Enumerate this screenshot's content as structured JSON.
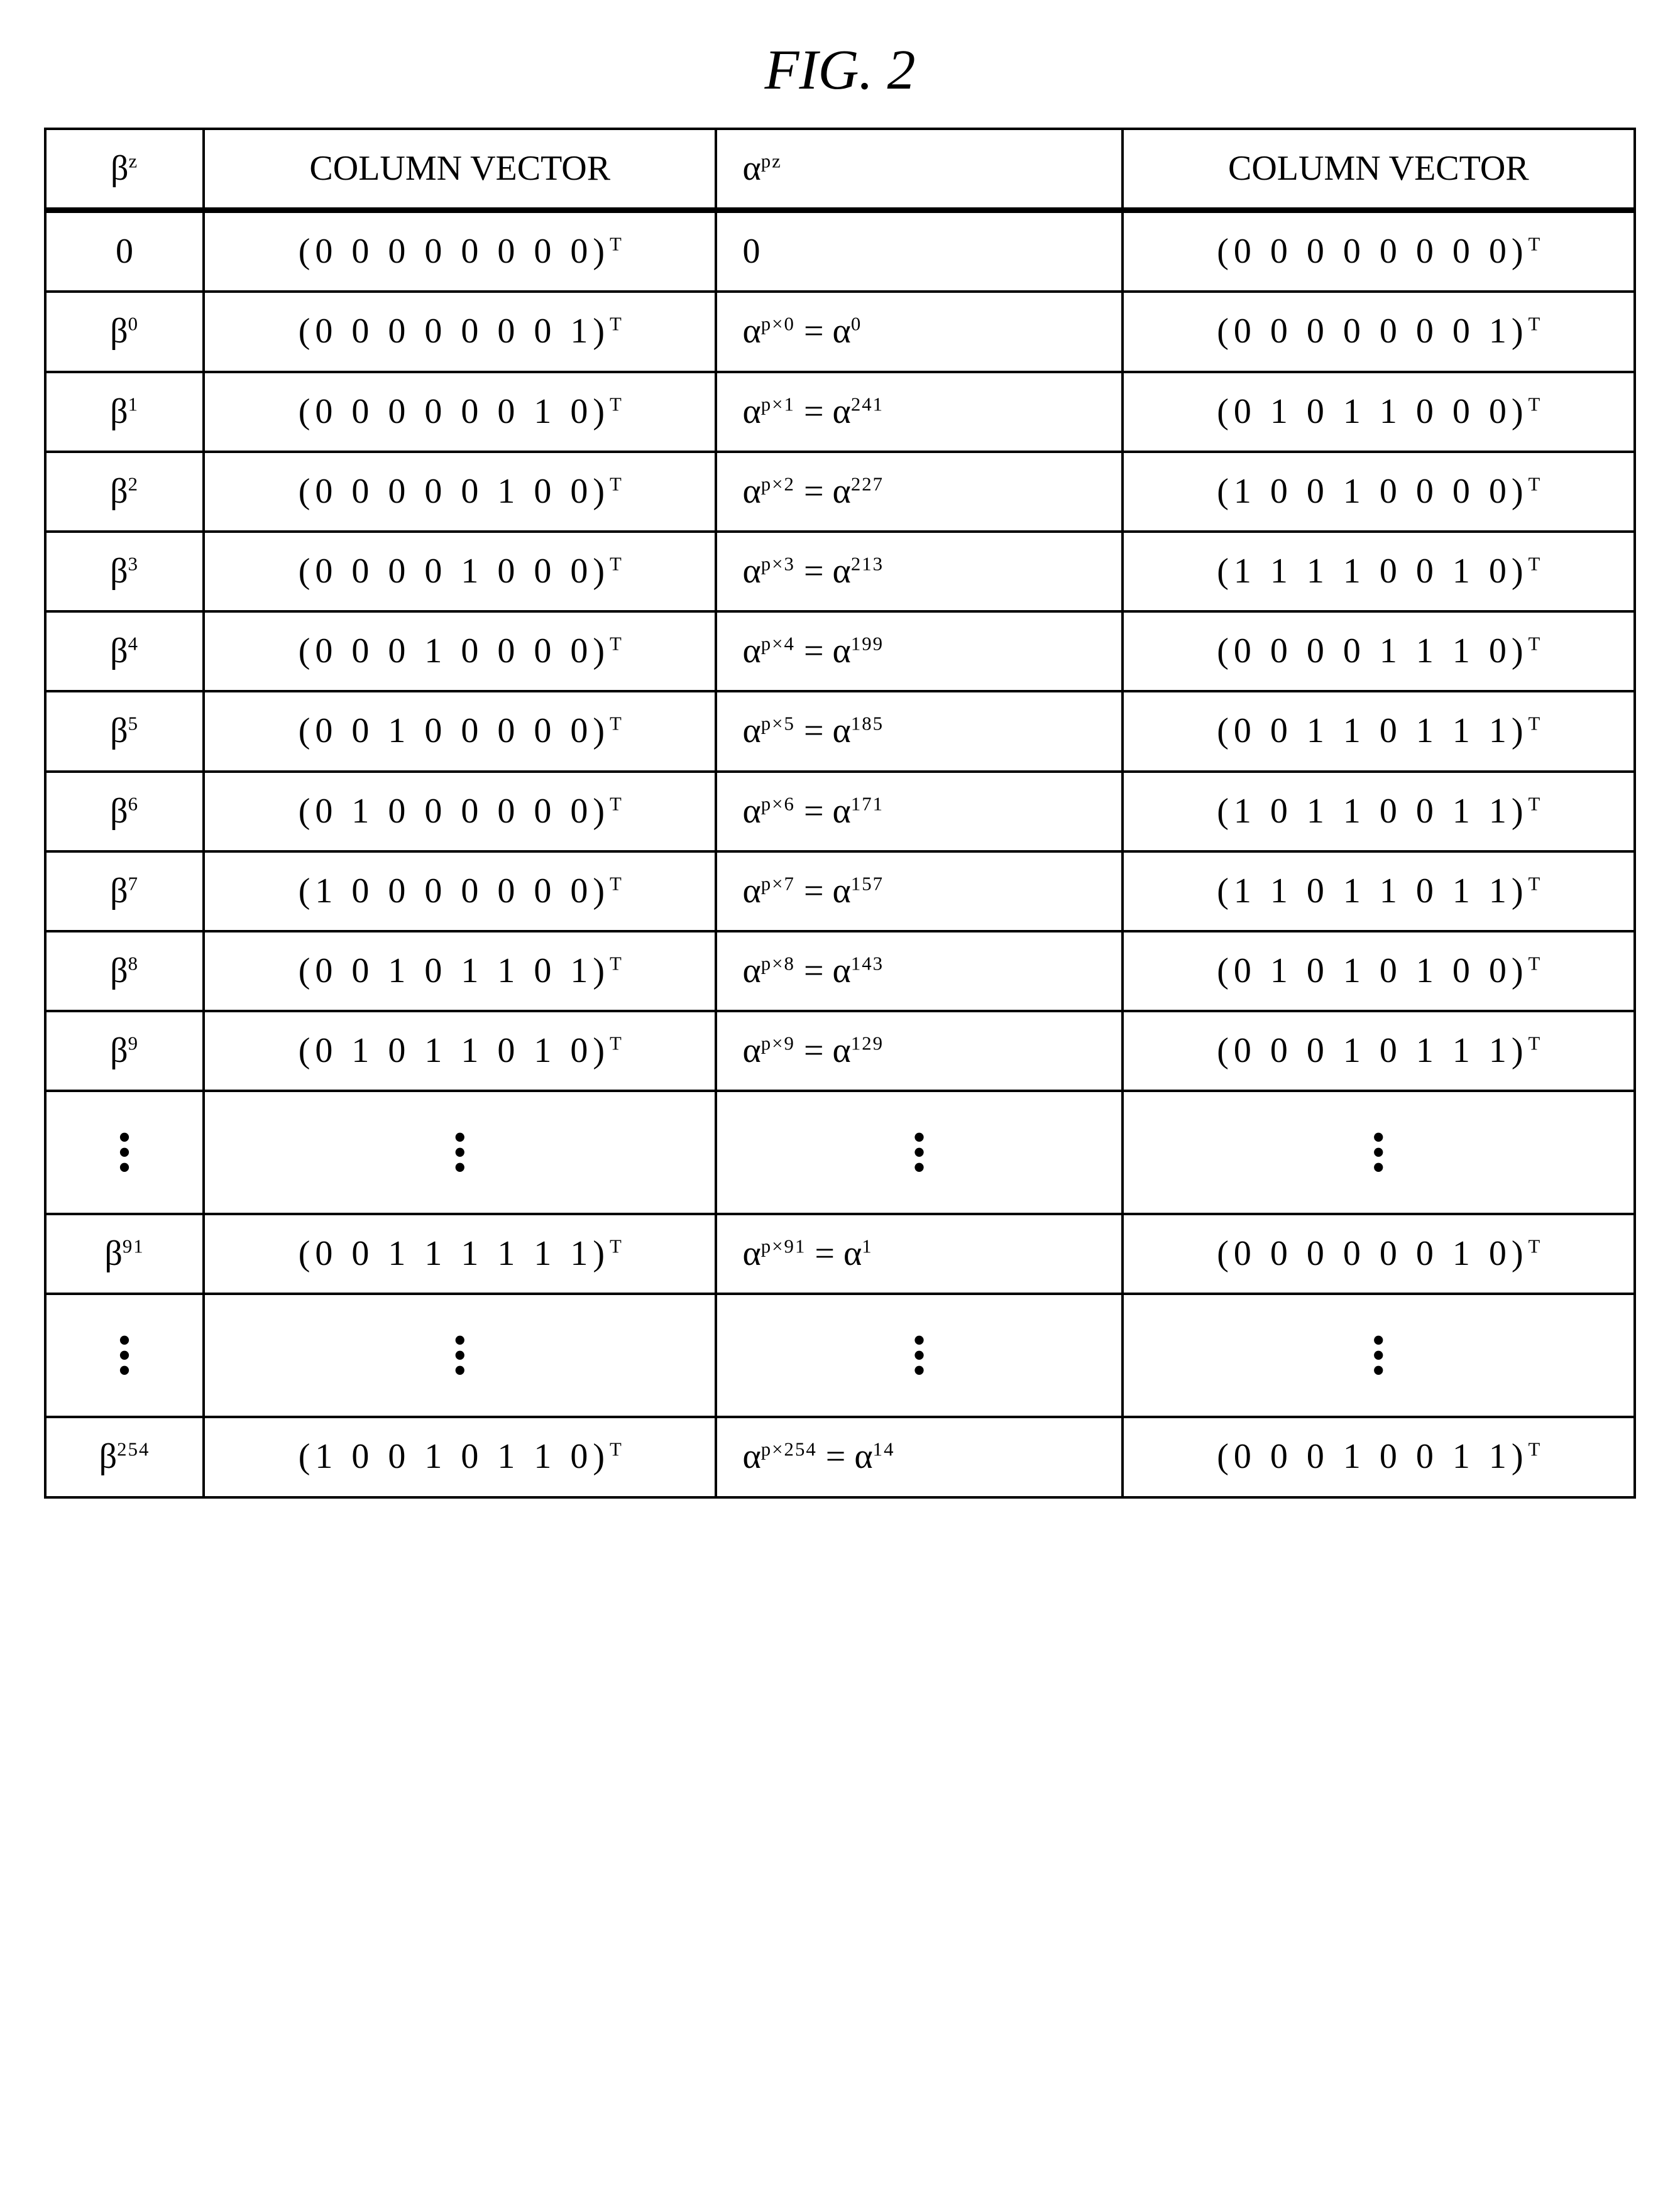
{
  "title": "FIG. 2",
  "headers": {
    "c1": "β",
    "c1sup": "z",
    "c2": "COLUMN VECTOR",
    "c3": "α",
    "c3sup": "pz",
    "c4": "COLUMN VECTOR"
  },
  "rows": [
    {
      "bz_base": "0",
      "bz_sup": "",
      "cv1": "(0 0 0 0 0 0 0 0)",
      "apz_prefix": "0",
      "apz_sup1": "",
      "apz_mid": "",
      "apz_sup2": "",
      "cv2": "(0 0 0 0 0 0 0 0)"
    },
    {
      "bz_base": "β",
      "bz_sup": "0",
      "cv1": "(0 0 0 0 0 0 0 1)",
      "apz_prefix": "α",
      "apz_sup1": "p×0",
      "apz_mid": " = α",
      "apz_sup2": "0",
      "cv2": "(0 0 0 0 0 0 0 1)"
    },
    {
      "bz_base": "β",
      "bz_sup": "1",
      "cv1": "(0 0 0 0 0 0 1 0)",
      "apz_prefix": "α",
      "apz_sup1": "p×1",
      "apz_mid": " = α",
      "apz_sup2": "241",
      "cv2": "(0 1 0 1 1 0 0 0)"
    },
    {
      "bz_base": "β",
      "bz_sup": "2",
      "cv1": "(0 0 0 0 0 1 0 0)",
      "apz_prefix": "α",
      "apz_sup1": "p×2",
      "apz_mid": " = α",
      "apz_sup2": "227",
      "cv2": "(1 0 0 1 0 0 0 0)"
    },
    {
      "bz_base": "β",
      "bz_sup": "3",
      "cv1": "(0 0 0 0 1 0 0 0)",
      "apz_prefix": "α",
      "apz_sup1": "p×3",
      "apz_mid": " = α",
      "apz_sup2": "213",
      "cv2": "(1 1 1 1 0 0 1 0)"
    },
    {
      "bz_base": "β",
      "bz_sup": "4",
      "cv1": "(0 0 0 1 0 0 0 0)",
      "apz_prefix": "α",
      "apz_sup1": "p×4",
      "apz_mid": " = α",
      "apz_sup2": "199",
      "cv2": "(0 0 0 0 1 1 1 0)"
    },
    {
      "bz_base": "β",
      "bz_sup": "5",
      "cv1": "(0 0 1 0 0 0 0 0)",
      "apz_prefix": "α",
      "apz_sup1": "p×5",
      "apz_mid": " = α",
      "apz_sup2": "185",
      "cv2": "(0 0 1 1 0 1 1 1)"
    },
    {
      "bz_base": "β",
      "bz_sup": "6",
      "cv1": "(0 1 0 0 0 0 0 0)",
      "apz_prefix": "α",
      "apz_sup1": "p×6",
      "apz_mid": " = α",
      "apz_sup2": "171",
      "cv2": "(1 0 1 1 0 0 1 1)"
    },
    {
      "bz_base": "β",
      "bz_sup": "7",
      "cv1": "(1 0 0 0 0 0 0 0)",
      "apz_prefix": "α",
      "apz_sup1": "p×7",
      "apz_mid": " = α",
      "apz_sup2": "157",
      "cv2": "(1 1 0 1 1 0 1 1)"
    },
    {
      "bz_base": "β",
      "bz_sup": "8",
      "cv1": "(0 0 1 0 1 1 0 1)",
      "apz_prefix": "α",
      "apz_sup1": "p×8",
      "apz_mid": " = α",
      "apz_sup2": "143",
      "cv2": "(0 1 0 1 0 1 0 0)"
    },
    {
      "bz_base": "β",
      "bz_sup": "9",
      "cv1": "(0 1 0 1 1 0 1 0)",
      "apz_prefix": "α",
      "apz_sup1": "p×9",
      "apz_mid": " = α",
      "apz_sup2": "129",
      "cv2": "(0 0 0 1 0 1 1 1)"
    },
    {
      "dots": true
    },
    {
      "bz_base": "β",
      "bz_sup": "91",
      "cv1": "(0 0 1 1 1 1 1 1)",
      "apz_prefix": "α",
      "apz_sup1": "p×91",
      "apz_mid": " = α",
      "apz_sup2": "1",
      "cv2": "(0 0 0 0 0 0 1 0)"
    },
    {
      "dots": true
    },
    {
      "bz_base": "β",
      "bz_sup": "254",
      "cv1": "(1 0 0 1 0 1 1 0)",
      "apz_prefix": "α",
      "apz_sup1": "p×254",
      "apz_mid": " = α",
      "apz_sup2": "14",
      "cv2": "(0 0 0 1 0 0 1 1)"
    }
  ]
}
